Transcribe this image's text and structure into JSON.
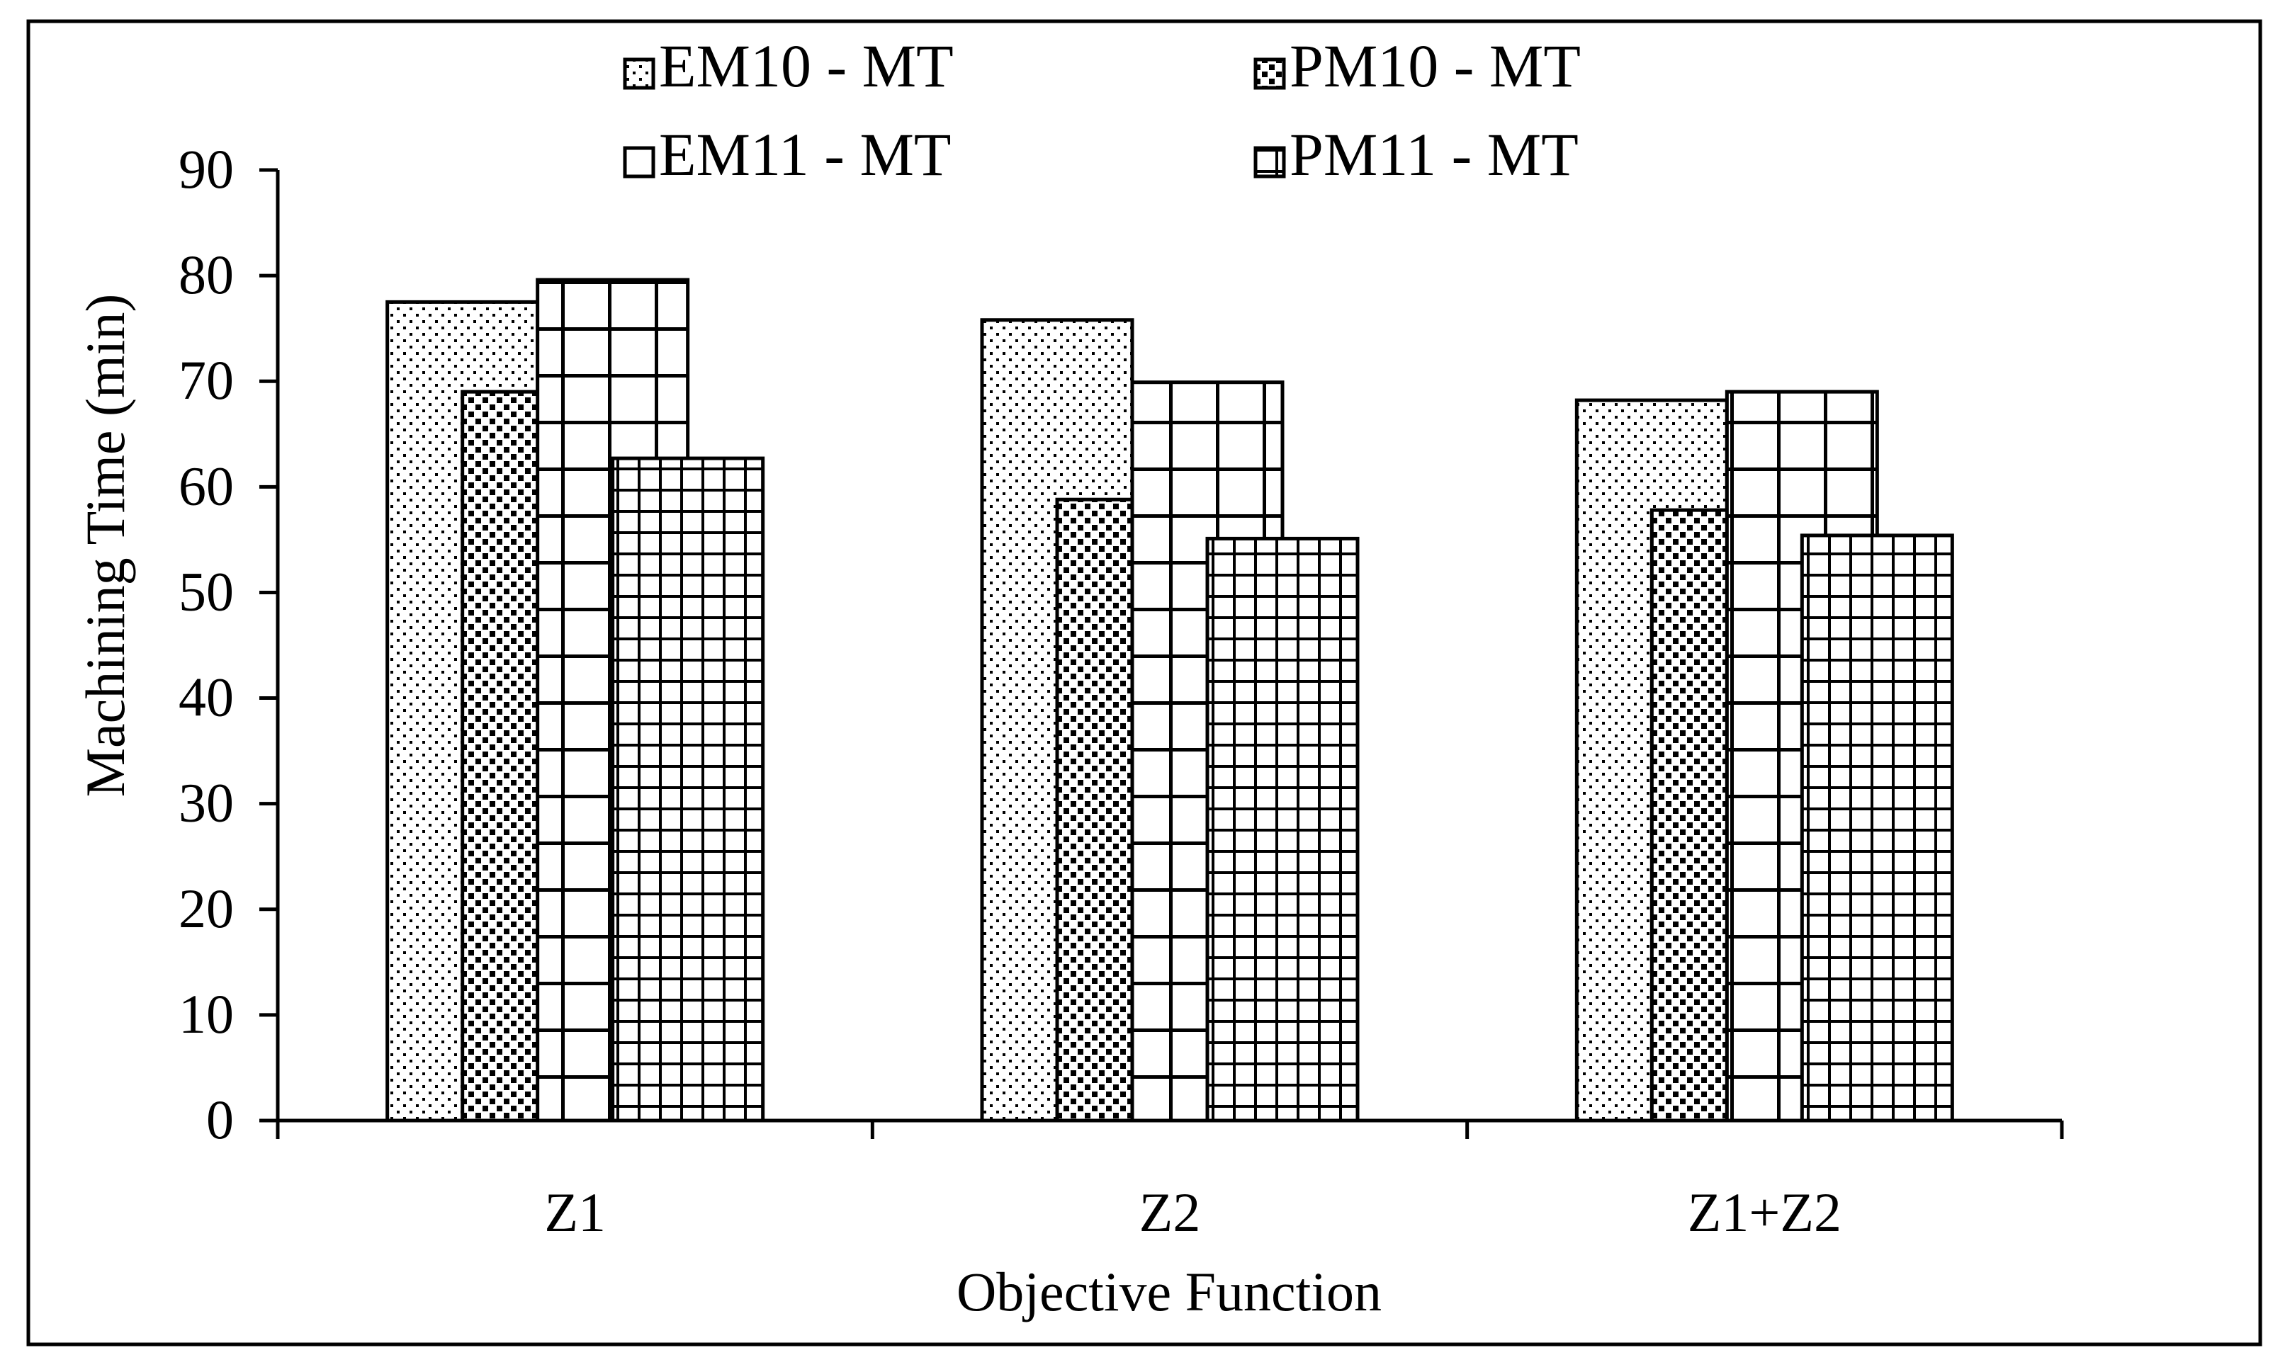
{
  "chart_data": {
    "type": "bar",
    "title": "",
    "xlabel": "Objective Function",
    "ylabel": "Machining Time (min)",
    "categories": [
      "Z1",
      "Z2",
      "Z1+Z2"
    ],
    "ylim": [
      0,
      90
    ],
    "yticks": [
      0,
      10,
      20,
      30,
      40,
      50,
      60,
      70,
      80,
      90
    ],
    "grid": false,
    "legend_position": "top",
    "series": [
      {
        "name": "EM10 - MT",
        "pattern": "sparse-dots",
        "values": [
          77.5,
          75.8,
          68.2
        ]
      },
      {
        "name": "PM10 - MT",
        "pattern": "dense-squares",
        "values": [
          69.0,
          58.8,
          57.8
        ]
      },
      {
        "name": "EM11 - MT",
        "pattern": "large-grid",
        "values": [
          79.6,
          69.9,
          69.0
        ]
      },
      {
        "name": "PM11 - MT",
        "pattern": "small-grid",
        "values": [
          62.7,
          55.1,
          55.4
        ]
      }
    ]
  },
  "colors": {
    "ink": "#000000",
    "background": "#ffffff"
  }
}
